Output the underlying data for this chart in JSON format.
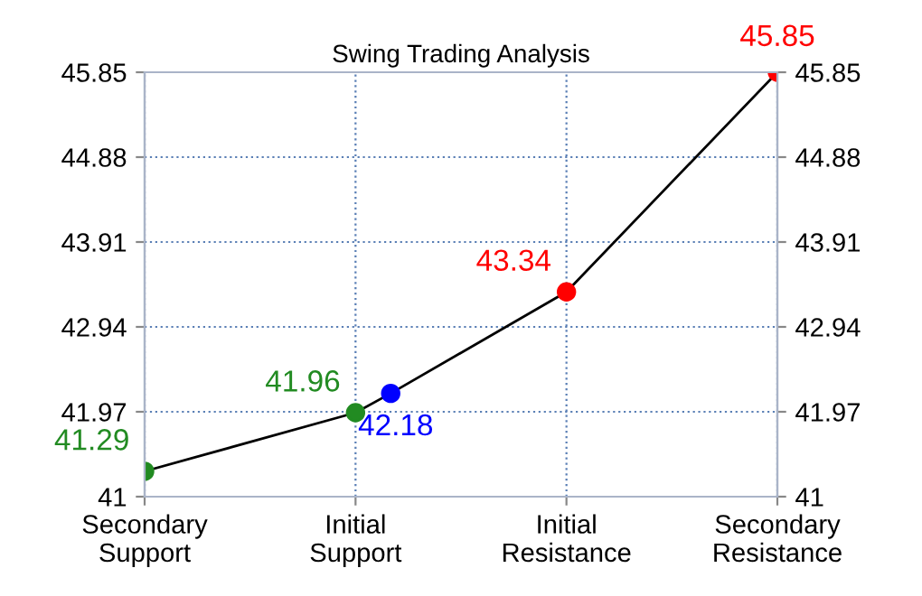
{
  "chart_data": {
    "type": "line",
    "title": "Swing Trading Analysis",
    "categories": [
      "Secondary\nSupport",
      null,
      null,
      null,
      null,
      null,
      "Initial\nSupport",
      null,
      null,
      null,
      null,
      null,
      "Initial\nResistance",
      null,
      null,
      null,
      null,
      null,
      "Secondary\nResistance"
    ],
    "series": [
      {
        "color": "#000000",
        "colors": [
          "#228b22",
          null,
          null,
          null,
          null,
          null,
          "#228b22",
          "#0000ff",
          null,
          null,
          null,
          null,
          "#ff0000",
          null,
          null,
          null,
          null,
          null,
          "#ff0000"
        ],
        "values": [
          41.29,
          null,
          null,
          null,
          null,
          null,
          41.96,
          42.18,
          null,
          null,
          null,
          null,
          43.34,
          null,
          null,
          null,
          null,
          null,
          45.85
        ]
      }
    ],
    "ylim": [
      41,
      45.85
    ],
    "yticks": [
      41,
      41.97,
      42.94,
      43.91,
      44.88,
      45.85
    ],
    "y2lim": [
      41,
      45.85
    ],
    "y2ticks": [
      41,
      41.97,
      42.94,
      43.91,
      44.88,
      45.85
    ],
    "grid": true,
    "data_labels": true,
    "marker": "circle",
    "line_style": "solid"
  }
}
